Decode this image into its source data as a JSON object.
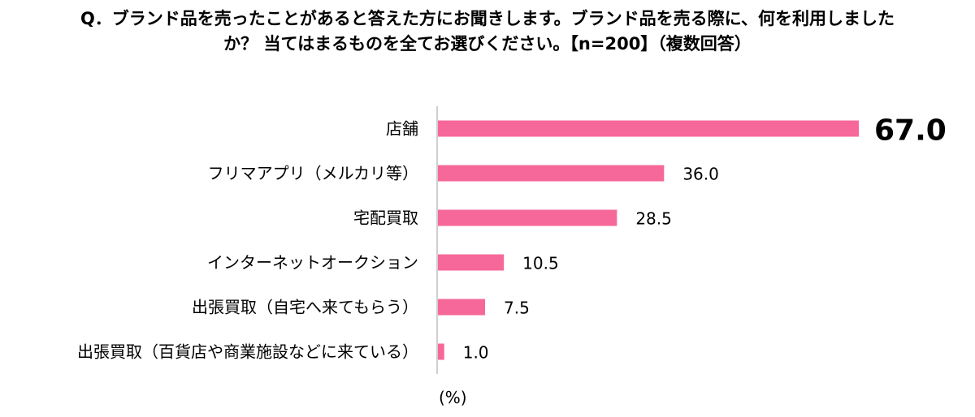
{
  "title_line1": "Q．ブランド品を売ったことがあると答えた方にお聞きします。ブランド品を売る際に、何を利用しました",
  "title_line2": "か？ 当てはまるものを全てお選びください。【n=200】（複数回答）",
  "unit_label": "(%)",
  "colors": {
    "bar": "#F7689A",
    "highlight_value": "#F7689A",
    "axis": "#BFBFBF"
  },
  "chart_data": {
    "type": "bar",
    "orientation": "horizontal",
    "categories": [
      "店舗",
      "フリマアプリ（メルカリ等）",
      "宅配買取",
      "インターネットオークション",
      "出張買取（自宅へ来てもらう）",
      "出張買取（百貨店や商業施設などに来ている）"
    ],
    "values": [
      67.0,
      36.0,
      28.5,
      10.5,
      7.5,
      1.0
    ],
    "value_labels": [
      "67.0",
      "36.0",
      "28.5",
      "10.5",
      "7.5",
      "1.0"
    ],
    "highlight_index": 0,
    "xlim": [
      0,
      67
    ],
    "grid": false,
    "legend": "none"
  }
}
